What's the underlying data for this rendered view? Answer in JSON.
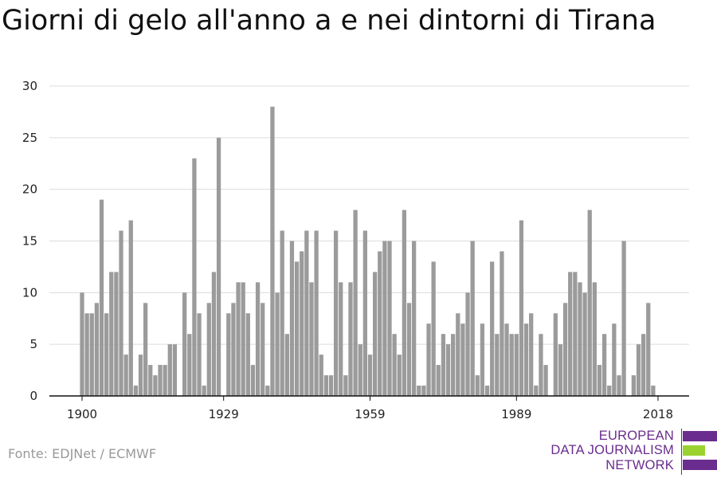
{
  "chart_data": {
    "type": "bar",
    "title": "Giorni di gelo all'anno a e nei dintorni di Tirana",
    "xlabel": "",
    "ylabel": "",
    "x_start": 1900,
    "x_end": 2018,
    "x_ticks": [
      1900,
      1929,
      1959,
      1989,
      2018
    ],
    "y_ticks": [
      0,
      5,
      10,
      15,
      20,
      25,
      30
    ],
    "ylim": [
      0,
      30
    ],
    "grid": true,
    "bar_color": "#9b9b9b",
    "values": [
      10,
      8,
      8,
      9,
      19,
      8,
      12,
      12,
      16,
      4,
      17,
      1,
      4,
      9,
      3,
      2,
      3,
      3,
      5,
      5,
      0,
      10,
      6,
      23,
      8,
      1,
      9,
      12,
      25,
      0,
      8,
      9,
      11,
      11,
      8,
      3,
      11,
      9,
      1,
      28,
      10,
      16,
      6,
      15,
      13,
      14,
      16,
      11,
      16,
      4,
      2,
      2,
      16,
      11,
      2,
      11,
      18,
      5,
      16,
      4,
      12,
      14,
      15,
      15,
      6,
      4,
      18,
      9,
      15,
      1,
      1,
      7,
      13,
      3,
      6,
      5,
      6,
      8,
      7,
      10,
      15,
      2,
      7,
      1,
      13,
      6,
      14,
      7,
      6,
      6,
      17,
      7,
      8,
      1,
      6,
      3,
      0,
      8,
      5,
      9,
      12,
      12,
      11,
      10,
      18,
      11,
      3,
      6,
      1,
      7,
      2,
      15,
      0,
      2,
      5,
      6,
      9,
      1
    ]
  },
  "source": "Fonte: EDJNet / ECMWF",
  "logo": {
    "line1": "EUROPEAN",
    "line2": "DATA JOURNALISM",
    "line3": "NETWORK",
    "purple": "#6a2c8f",
    "green": "#9bd22f"
  }
}
